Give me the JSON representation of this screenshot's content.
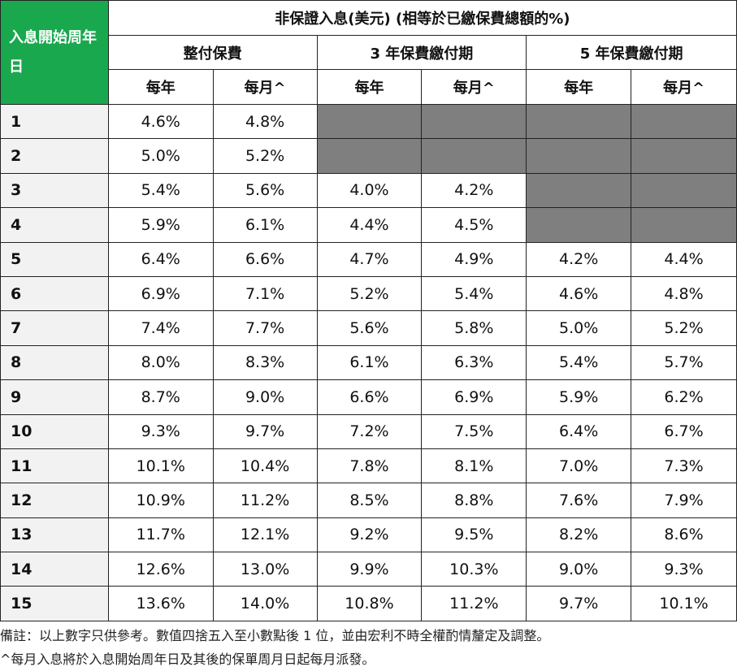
{
  "header": {
    "row_label_title": "入息開始周年日",
    "main_title": "非保證入息(美元) (相等於已繳保費總額的%)",
    "groups": [
      "整付保費",
      "3 年保費繳付期",
      "5 年保費繳付期"
    ],
    "sub": [
      "每年",
      "每月^",
      "每年",
      "每月^",
      "每年",
      "每月^"
    ]
  },
  "rows": [
    {
      "year": "1",
      "vals": [
        "4.6%",
        "4.8%",
        "",
        "",
        "",
        ""
      ]
    },
    {
      "year": "2",
      "vals": [
        "5.0%",
        "5.2%",
        "",
        "",
        "",
        ""
      ]
    },
    {
      "year": "3",
      "vals": [
        "5.4%",
        "5.6%",
        "4.0%",
        "4.2%",
        "",
        ""
      ]
    },
    {
      "year": "4",
      "vals": [
        "5.9%",
        "6.1%",
        "4.4%",
        "4.5%",
        "",
        ""
      ]
    },
    {
      "year": "5",
      "vals": [
        "6.4%",
        "6.6%",
        "4.7%",
        "4.9%",
        "4.2%",
        "4.4%"
      ]
    },
    {
      "year": "6",
      "vals": [
        "6.9%",
        "7.1%",
        "5.2%",
        "5.4%",
        "4.6%",
        "4.8%"
      ]
    },
    {
      "year": "7",
      "vals": [
        "7.4%",
        "7.7%",
        "5.6%",
        "5.8%",
        "5.0%",
        "5.2%"
      ]
    },
    {
      "year": "8",
      "vals": [
        "8.0%",
        "8.3%",
        "6.1%",
        "6.3%",
        "5.4%",
        "5.7%"
      ]
    },
    {
      "year": "9",
      "vals": [
        "8.7%",
        "9.0%",
        "6.6%",
        "6.9%",
        "5.9%",
        "6.2%"
      ]
    },
    {
      "year": "10",
      "vals": [
        "9.3%",
        "9.7%",
        "7.2%",
        "7.5%",
        "6.4%",
        "6.7%"
      ]
    },
    {
      "year": "11",
      "vals": [
        "10.1%",
        "10.4%",
        "7.8%",
        "8.1%",
        "7.0%",
        "7.3%"
      ]
    },
    {
      "year": "12",
      "vals": [
        "10.9%",
        "11.2%",
        "8.5%",
        "8.8%",
        "7.6%",
        "7.9%"
      ]
    },
    {
      "year": "13",
      "vals": [
        "11.7%",
        "12.1%",
        "9.2%",
        "9.5%",
        "8.2%",
        "8.6%"
      ]
    },
    {
      "year": "14",
      "vals": [
        "12.6%",
        "13.0%",
        "9.9%",
        "10.3%",
        "9.0%",
        "9.3%"
      ]
    },
    {
      "year": "15",
      "vals": [
        "13.6%",
        "14.0%",
        "10.8%",
        "11.2%",
        "9.7%",
        "10.1%"
      ]
    }
  ],
  "notes": {
    "remark": "備註：以上數字只供參考。數值四捨五入至小數點後 1 位，並由宏利不時全權酌情釐定及調整。",
    "monthly": "^每月入息將於入息開始周年日及其後的保單周月日起每月派發。"
  },
  "colors": {
    "header_green": "#1aa84f",
    "unavailable_gray": "#7f7f7f",
    "label_bg": "#f2f2f2"
  }
}
